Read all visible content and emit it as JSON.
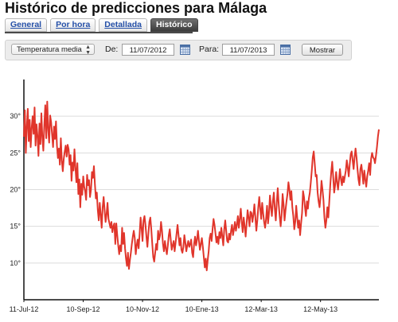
{
  "page": {
    "title": "Histórico de predicciones para Málaga"
  },
  "tabs": [
    {
      "label": "General",
      "active": false
    },
    {
      "label": "Por hora",
      "active": false
    },
    {
      "label": "Detallada",
      "active": false
    },
    {
      "label": "Histórico",
      "active": true
    }
  ],
  "toolbar": {
    "variable": "Temperatura media",
    "from_label": "De:",
    "from_date": "11/07/2012",
    "to_label": "Para:",
    "to_date": "11/07/2013",
    "show_button": "Mostrar"
  },
  "colors": {
    "line": "#e0352b",
    "active_tab": "#4a4a4a",
    "link": "#2550a8"
  },
  "chart_data": {
    "type": "line",
    "title": "",
    "xlabel": "",
    "ylabel": "",
    "x_start": "11-Jul-12",
    "x_end": "11-Jul-13",
    "x_unit": "day",
    "ylim": [
      5,
      35
    ],
    "yticks": [
      10,
      15,
      20,
      25,
      30
    ],
    "ytick_labels": [
      "10°",
      "15°",
      "20°",
      "25°",
      "30°"
    ],
    "xtick_labels": [
      "11-Jul-12",
      "10-Sep-12",
      "10-Nov-12",
      "10-Ene-13",
      "12-Mar-13",
      "12-May-13"
    ],
    "grid": true,
    "legend": "none",
    "series": [
      {
        "values": [
          27.2,
          30.8,
          25.0,
          28.5,
          31.0,
          26.6,
          29.5,
          25.8,
          28.4,
          30.0,
          27.6,
          31.2,
          26.0,
          28.9,
          27.3,
          24.6,
          29.0,
          26.2,
          30.4,
          27.1,
          25.3,
          28.8,
          31.5,
          27.0,
          32.0,
          28.2,
          26.4,
          30.1,
          29.2,
          27.5,
          25.8,
          28.6,
          26.9,
          29.3,
          26.0,
          24.3,
          25.6,
          23.4,
          27.0,
          24.0,
          22.5,
          24.2,
          25.2,
          26.0,
          24.5,
          26.1,
          25.5,
          23.4,
          24.7,
          21.2,
          23.7,
          22.6,
          25.5,
          23.0,
          21.0,
          23.6,
          19.4,
          21.4,
          17.6,
          20.8,
          19.3,
          21.8,
          20.4,
          19.8,
          18.6,
          22.0,
          20.6,
          21.3,
          19.0,
          20.0,
          22.4,
          21.6,
          23.2,
          20.8,
          18.8,
          19.6,
          17.2,
          15.8,
          18.2,
          16.6,
          14.8,
          17.6,
          19.0,
          17.2,
          15.6,
          16.6,
          18.2,
          16.0,
          15.4,
          14.8,
          15.6,
          14.2,
          15.0,
          15.4,
          12.6,
          15.4,
          13.8,
          12.4,
          11.2,
          12.4,
          11.6,
          14.8,
          12.6,
          14.1,
          12.0,
          10.6,
          9.6,
          11.4,
          9.2,
          10.4,
          11.4,
          12.6,
          13.6,
          14.4,
          13.4,
          11.2,
          12.4,
          13.2,
          12.0,
          14.0,
          16.2,
          14.8,
          13.0,
          15.8,
          16.4,
          15.2,
          13.6,
          12.2,
          14.0,
          15.6,
          16.2,
          14.6,
          12.6,
          10.8,
          10.2,
          11.4,
          12.6,
          11.8,
          14.4,
          13.2,
          13.8,
          15.6,
          14.4,
          12.6,
          11.6,
          13.0,
          12.0,
          11.2,
          12.4,
          13.8,
          14.6,
          13.2,
          11.8,
          12.4,
          13.0,
          11.6,
          12.8,
          14.0,
          15.2,
          13.8,
          12.4,
          13.4,
          11.8,
          11.4,
          12.2,
          13.8,
          12.8,
          11.6,
          12.4,
          13.0,
          12.2,
          12.6,
          13.2,
          11.4,
          10.8,
          12.6,
          13.6,
          12.4,
          13.2,
          14.4,
          13.0,
          11.8,
          12.6,
          13.4,
          12.2,
          10.8,
          9.4,
          10.6,
          9.0,
          10.4,
          11.6,
          13.4,
          14.0,
          13.0,
          14.6,
          16.0,
          15.2,
          14.0,
          12.8,
          13.6,
          12.6,
          14.2,
          13.4,
          14.8,
          13.6,
          12.4,
          14.6,
          15.8,
          14.4,
          13.0,
          12.8,
          14.0,
          13.2,
          14.4,
          15.2,
          13.8,
          14.6,
          15.6,
          14.4,
          15.2,
          16.4,
          14.8,
          16.0,
          17.4,
          15.6,
          14.2,
          16.2,
          15.0,
          13.6,
          15.4,
          17.2,
          16.2,
          15.0,
          17.0,
          16.8,
          15.6,
          16.6,
          18.0,
          16.2,
          14.4,
          15.8,
          17.6,
          19.0,
          17.4,
          16.0,
          18.2,
          16.8,
          15.6,
          14.8,
          16.0,
          17.8,
          15.4,
          16.8,
          19.2,
          17.6,
          16.4,
          18.4,
          19.6,
          17.4,
          15.8,
          18.2,
          20.2,
          18.0,
          16.4,
          15.0,
          16.6,
          19.4,
          18.0,
          15.8,
          17.2,
          18.4,
          19.4,
          21.0,
          20.0,
          18.6,
          19.8,
          17.6,
          16.4,
          14.6,
          15.6,
          17.8,
          16.2,
          14.8,
          15.8,
          13.8,
          15.4,
          16.8,
          19.8,
          19.0,
          17.6,
          16.4,
          18.4,
          17.4,
          18.8,
          19.6,
          21.0,
          22.6,
          24.4,
          25.2,
          23.6,
          21.8,
          22.0,
          19.6,
          18.4,
          17.6,
          19.0,
          21.2,
          20.0,
          18.6,
          16.2,
          14.8,
          15.8,
          17.6,
          16.2,
          18.4,
          20.6,
          22.4,
          23.8,
          21.8,
          19.6,
          20.6,
          22.4,
          21.0,
          20.0,
          21.4,
          22.8,
          21.4,
          20.6,
          21.8,
          21.0,
          21.8,
          22.6,
          24.0,
          23.0,
          21.8,
          23.4,
          24.8,
          25.2,
          24.0,
          22.8,
          24.4,
          25.6,
          24.4,
          22.8,
          21.4,
          20.6,
          22.8,
          23.4,
          22.2,
          20.8,
          22.6,
          21.4,
          20.4,
          21.8,
          22.6,
          23.6,
          22.0,
          24.2,
          25.0,
          24.4,
          24.2,
          23.6,
          24.6,
          25.8,
          27.2,
          28.2
        ]
      }
    ]
  }
}
